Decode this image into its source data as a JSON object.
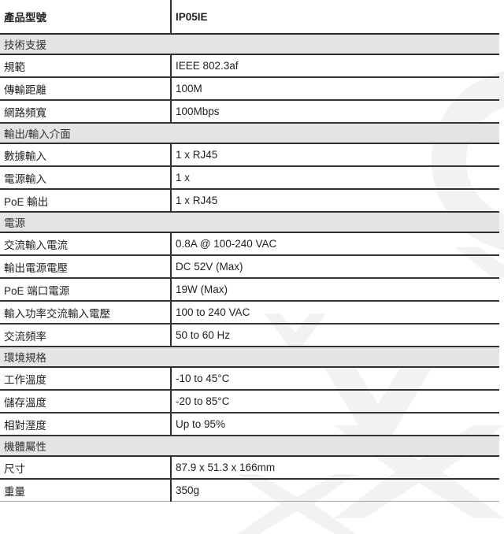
{
  "colors": {
    "row_border": "#2e2e2e",
    "section_bar_bg": "#e4e4e4",
    "bottom_border": "#a8a8a8",
    "watermark": "#f2f2f2",
    "text": "#1f1f1f"
  },
  "spec": {
    "model": {
      "label": "產品型號",
      "value": "IP05IE"
    },
    "sections": [
      {
        "title": "技術支援",
        "rows": [
          {
            "label": "規範",
            "value": "IEEE 802.3af"
          },
          {
            "label": "傳輸距離",
            "value": "100M"
          },
          {
            "label": "網路頻寬",
            "value": "100Mbps"
          }
        ]
      },
      {
        "title": "輸出/輸入介面",
        "rows": [
          {
            "label": "數據輸入",
            "value": "1 x RJ45"
          },
          {
            "label": "電源輸入",
            "value": "1 x"
          },
          {
            "label": "PoE 輸出",
            "value": "1 x RJ45"
          }
        ]
      },
      {
        "title": "電源",
        "rows": [
          {
            "label": "交流輸入電流",
            "value": "0.8A @ 100-240 VAC"
          },
          {
            "label": "輸出電源電壓",
            "value": "DC 52V (Max)"
          },
          {
            "label": "PoE 端口電源",
            "value": "19W (Max)"
          },
          {
            "label": "輸入功率交流輸入電壓",
            "value": "100 to 240 VAC"
          },
          {
            "label": "交流頻率",
            "value": "50 to 60 Hz"
          }
        ]
      },
      {
        "title": "環境規格",
        "rows": [
          {
            "label": "工作溫度",
            "value": "-10 to 45°C"
          },
          {
            "label": "儲存溫度",
            "value": "-20 to 85°C"
          },
          {
            "label": "相對溼度",
            "value": "Up to 95%"
          }
        ]
      },
      {
        "title": "機體屬性",
        "rows": [
          {
            "label": "尺寸",
            "value": "87.9 x 51.3 x 166mm"
          },
          {
            "label": "重量",
            "value": "350g"
          }
        ]
      }
    ]
  }
}
